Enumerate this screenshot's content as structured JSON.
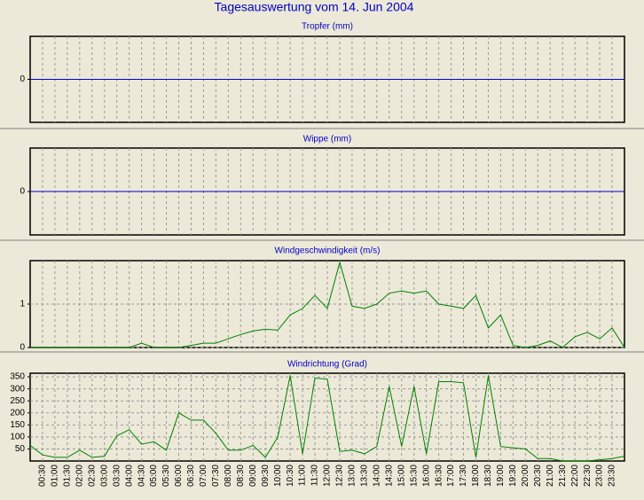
{
  "title": "Tagesauswertung vom 14. Jun 2004",
  "chart_data": [
    {
      "type": "line",
      "title": "Tropfer (mm)",
      "color": "#0000cc",
      "grid": true,
      "ylim": [
        -1,
        1
      ],
      "yticks": [
        0
      ],
      "values": [
        0,
        0,
        0,
        0,
        0,
        0,
        0,
        0,
        0,
        0,
        0,
        0,
        0,
        0,
        0,
        0,
        0,
        0,
        0,
        0,
        0,
        0,
        0,
        0,
        0,
        0,
        0,
        0,
        0,
        0,
        0,
        0,
        0,
        0,
        0,
        0,
        0,
        0,
        0,
        0,
        0,
        0,
        0,
        0,
        0,
        0,
        0,
        0,
        0
      ]
    },
    {
      "type": "line",
      "title": "Wippe (mm)",
      "color": "#0000cc",
      "grid": true,
      "ylim": [
        -1,
        1
      ],
      "yticks": [
        0
      ],
      "values": [
        0,
        0,
        0,
        0,
        0,
        0,
        0,
        0,
        0,
        0,
        0,
        0,
        0,
        0,
        0,
        0,
        0,
        0,
        0,
        0,
        0,
        0,
        0,
        0,
        0,
        0,
        0,
        0,
        0,
        0,
        0,
        0,
        0,
        0,
        0,
        0,
        0,
        0,
        0,
        0,
        0,
        0,
        0,
        0,
        0,
        0,
        0,
        0,
        0
      ]
    },
    {
      "type": "line",
      "title": "Windgeschwindigkeit (m/s)",
      "color": "#008000",
      "grid": true,
      "ylim": [
        0,
        2
      ],
      "yticks": [
        0,
        1
      ],
      "values": [
        0,
        0,
        0,
        0,
        0,
        0,
        0,
        0,
        0,
        0.1,
        0,
        0,
        0,
        0.05,
        0.1,
        0.1,
        0.2,
        0.3,
        0.38,
        0.42,
        0.4,
        0.75,
        0.9,
        1.2,
        0.9,
        1.96,
        0.95,
        0.9,
        1.0,
        1.25,
        1.3,
        1.25,
        1.3,
        1.0,
        0.95,
        0.9,
        1.2,
        0.45,
        0.75,
        0.05,
        0,
        0.05,
        0.15,
        0,
        0.25,
        0.35,
        0.2,
        0.45,
        0
      ]
    },
    {
      "type": "line",
      "title": "Windrichtung (Grad)",
      "color": "#008000",
      "grid": true,
      "ylim": [
        0,
        365
      ],
      "yticks": [
        50,
        100,
        150,
        200,
        250,
        300,
        350
      ],
      "categories": [
        null,
        "00:30",
        "01:00",
        "01:30",
        "02:00",
        "02:30",
        "03:00",
        "03:30",
        "04:00",
        "04:30",
        "05:00",
        "05:30",
        "06:00",
        "06:30",
        "07:00",
        "07:30",
        "08:00",
        "08:30",
        "09:00",
        "09:30",
        "10:00",
        "10:30",
        "11:00",
        "11:30",
        "12:00",
        "12:30",
        "13:00",
        "13:30",
        "14:00",
        "14:30",
        "15:00",
        "15:30",
        "16:00",
        "16:30",
        "17:00",
        "17:30",
        "18:00",
        "18:30",
        "19:00",
        "19:30",
        "20:00",
        "20:30",
        "21:00",
        "21:30",
        "22:00",
        "22:30",
        "23:00",
        "23:30",
        null
      ],
      "values": [
        65,
        25,
        15,
        15,
        45,
        15,
        20,
        105,
        130,
        70,
        80,
        45,
        200,
        170,
        170,
        115,
        45,
        45,
        65,
        15,
        100,
        355,
        30,
        345,
        340,
        40,
        45,
        30,
        60,
        310,
        60,
        310,
        30,
        330,
        330,
        325,
        15,
        355,
        60,
        55,
        50,
        10,
        10,
        0,
        0,
        0,
        5,
        10,
        20
      ]
    }
  ]
}
